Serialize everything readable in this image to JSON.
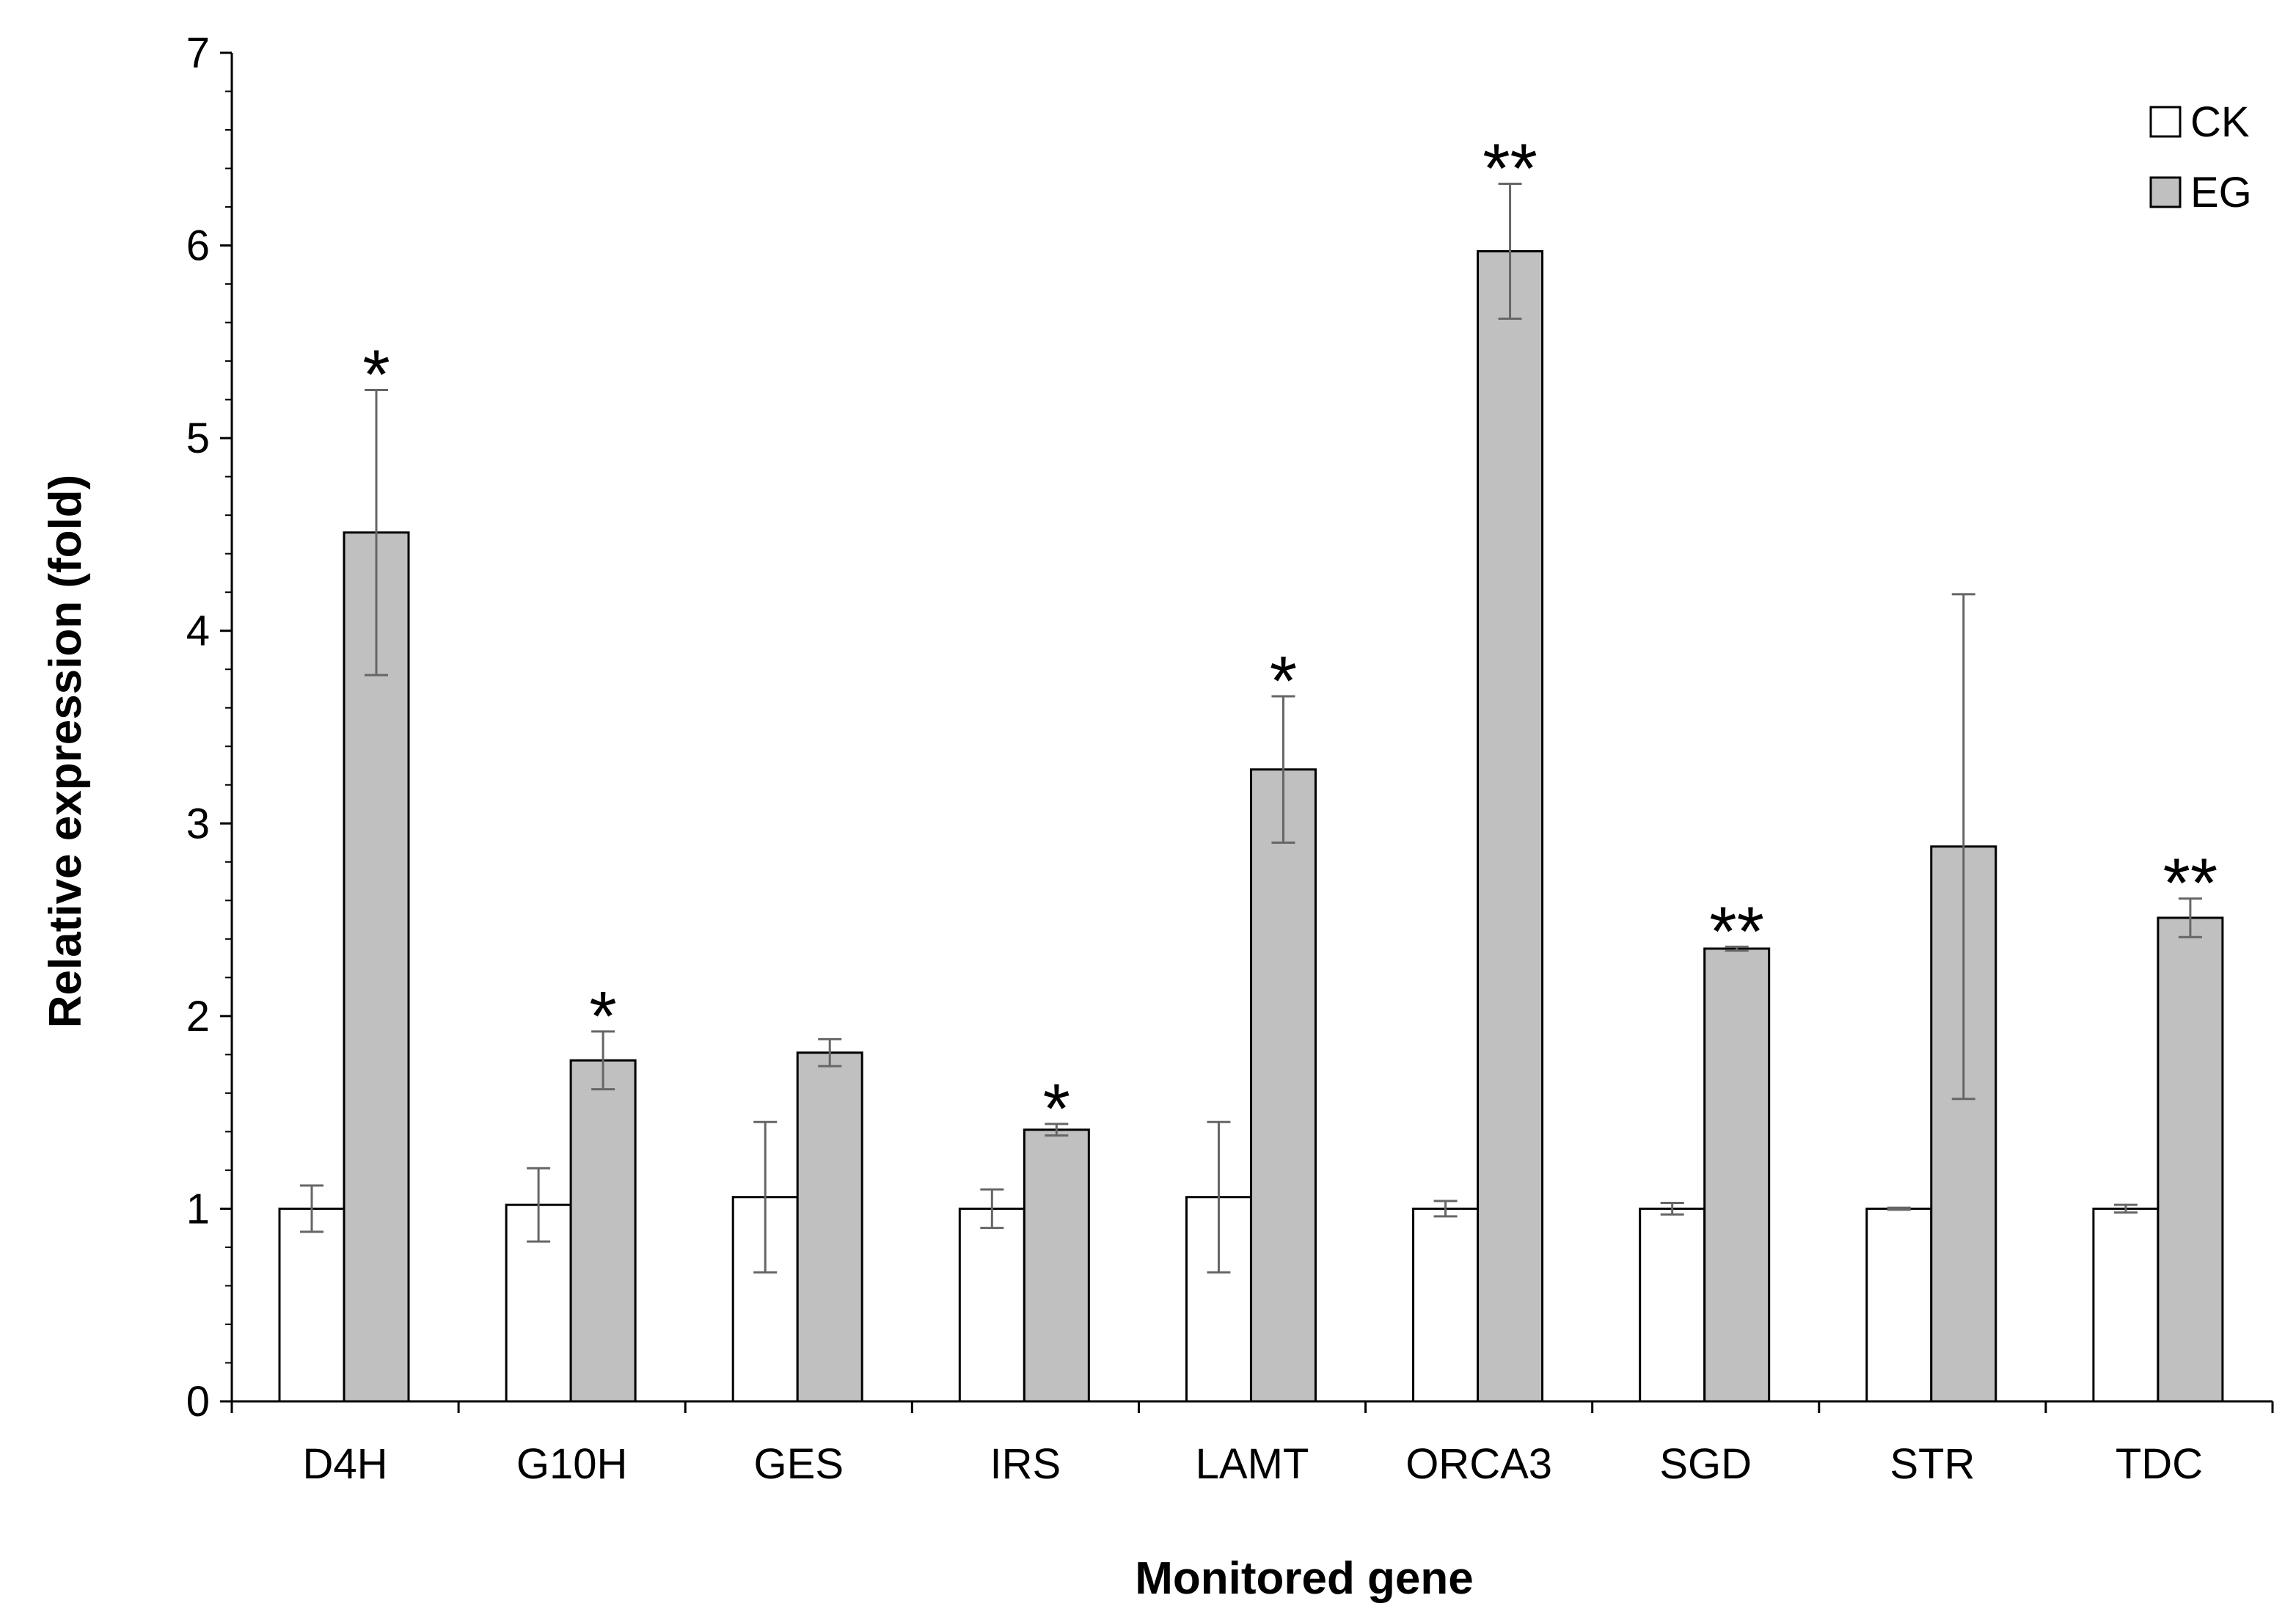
{
  "chart_data": {
    "type": "bar",
    "title": "",
    "xlabel": "Monitored gene",
    "ylabel": "Relative expression (fold)",
    "ylim": [
      0,
      7
    ],
    "yticks": [
      0,
      1,
      2,
      3,
      4,
      5,
      6,
      7
    ],
    "grid": false,
    "legend_position": "top-right",
    "categories": [
      "D4H",
      "G10H",
      "GES",
      "IRS",
      "LAMT",
      "ORCA3",
      "SGD",
      "STR",
      "TDC"
    ],
    "series": [
      {
        "name": "CK",
        "color": "#ffffff",
        "values": [
          1.0,
          1.02,
          1.06,
          1.0,
          1.06,
          1.0,
          1.0,
          1.0,
          1.0
        ],
        "errors": [
          0.12,
          0.19,
          0.39,
          0.1,
          0.39,
          0.04,
          0.03,
          0.005,
          0.02
        ]
      },
      {
        "name": "EG",
        "color": "#c0c0c0",
        "values": [
          4.51,
          1.77,
          1.81,
          1.41,
          3.28,
          5.97,
          2.35,
          2.88,
          2.51
        ],
        "errors": [
          0.74,
          0.15,
          0.07,
          0.03,
          0.38,
          0.35,
          0.01,
          1.31,
          0.1
        ]
      }
    ],
    "significance": [
      "*",
      "*",
      "",
      "*",
      "*",
      "**",
      "**",
      "",
      "**"
    ]
  }
}
